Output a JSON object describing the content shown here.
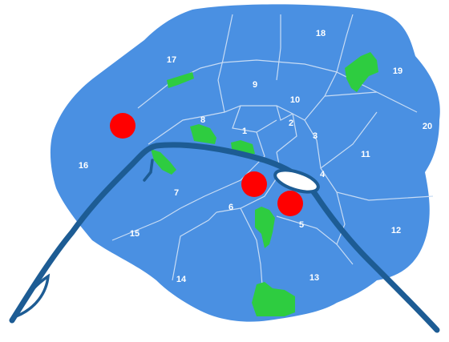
{
  "map": {
    "colors": {
      "city": "#4a90e2",
      "boundary": "#c8dcf4",
      "park": "#2ecc40",
      "river": "#1d5c94",
      "marker": "#ff0000"
    },
    "districts": [
      {
        "id": "d1",
        "label": "1"
      },
      {
        "id": "d2",
        "label": "2"
      },
      {
        "id": "d3",
        "label": "3"
      },
      {
        "id": "d4",
        "label": "4"
      },
      {
        "id": "d5",
        "label": "5"
      },
      {
        "id": "d6",
        "label": "6"
      },
      {
        "id": "d7",
        "label": "7"
      },
      {
        "id": "d8",
        "label": "8"
      },
      {
        "id": "d9",
        "label": "9"
      },
      {
        "id": "d10",
        "label": "10"
      },
      {
        "id": "d11",
        "label": "11"
      },
      {
        "id": "d12",
        "label": "12"
      },
      {
        "id": "d13",
        "label": "13"
      },
      {
        "id": "d14",
        "label": "14"
      },
      {
        "id": "d15",
        "label": "15"
      },
      {
        "id": "d16",
        "label": "16"
      },
      {
        "id": "d17",
        "label": "17"
      },
      {
        "id": "d18",
        "label": "18"
      },
      {
        "id": "d19",
        "label": "19"
      },
      {
        "id": "d20",
        "label": "20"
      }
    ],
    "markers": [
      {
        "id": "marker-16"
      },
      {
        "id": "marker-6"
      },
      {
        "id": "marker-5"
      }
    ]
  }
}
